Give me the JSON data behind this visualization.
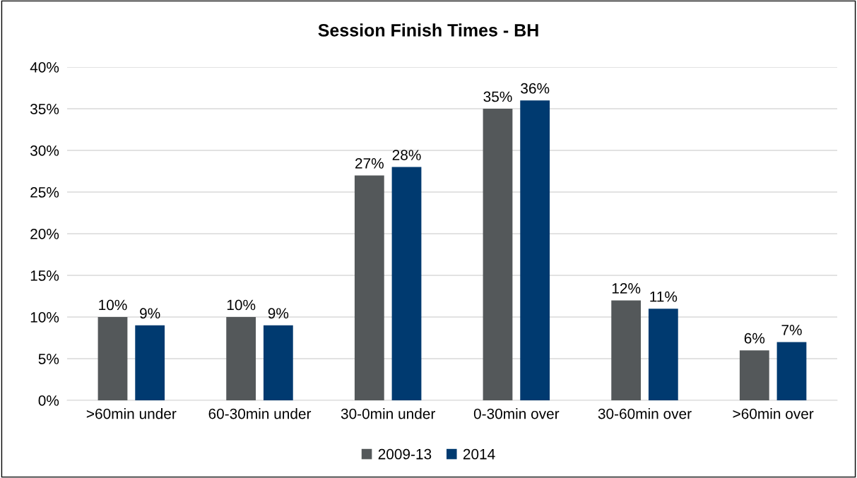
{
  "chart_data": {
    "type": "bar",
    "title": "Session Finish Times - BH",
    "categories": [
      ">60min under",
      "60-30min under",
      "30-0min under",
      "0-30min over",
      "30-60min over",
      ">60min over"
    ],
    "series": [
      {
        "name": "2009-13",
        "color": "#54585a",
        "values": [
          10,
          10,
          27,
          35,
          12,
          6
        ],
        "value_labels": [
          "10%",
          "10%",
          "27%",
          "35%",
          "12%",
          "6%"
        ]
      },
      {
        "name": "2014",
        "color": "#003a70",
        "values": [
          9,
          9,
          28,
          36,
          11,
          7
        ],
        "value_labels": [
          "9%",
          "9%",
          "28%",
          "36%",
          "11%",
          "7%"
        ]
      }
    ],
    "ylim": [
      0,
      40
    ],
    "yticks": [
      {
        "value": 0,
        "label": "0%"
      },
      {
        "value": 5,
        "label": "5%"
      },
      {
        "value": 10,
        "label": "10%"
      },
      {
        "value": 15,
        "label": "15%"
      },
      {
        "value": 20,
        "label": "20%"
      },
      {
        "value": 25,
        "label": "25%"
      },
      {
        "value": 30,
        "label": "30%"
      },
      {
        "value": 35,
        "label": "35%"
      },
      {
        "value": 40,
        "label": "40%"
      }
    ],
    "grid": "y",
    "legend": "bottom"
  }
}
